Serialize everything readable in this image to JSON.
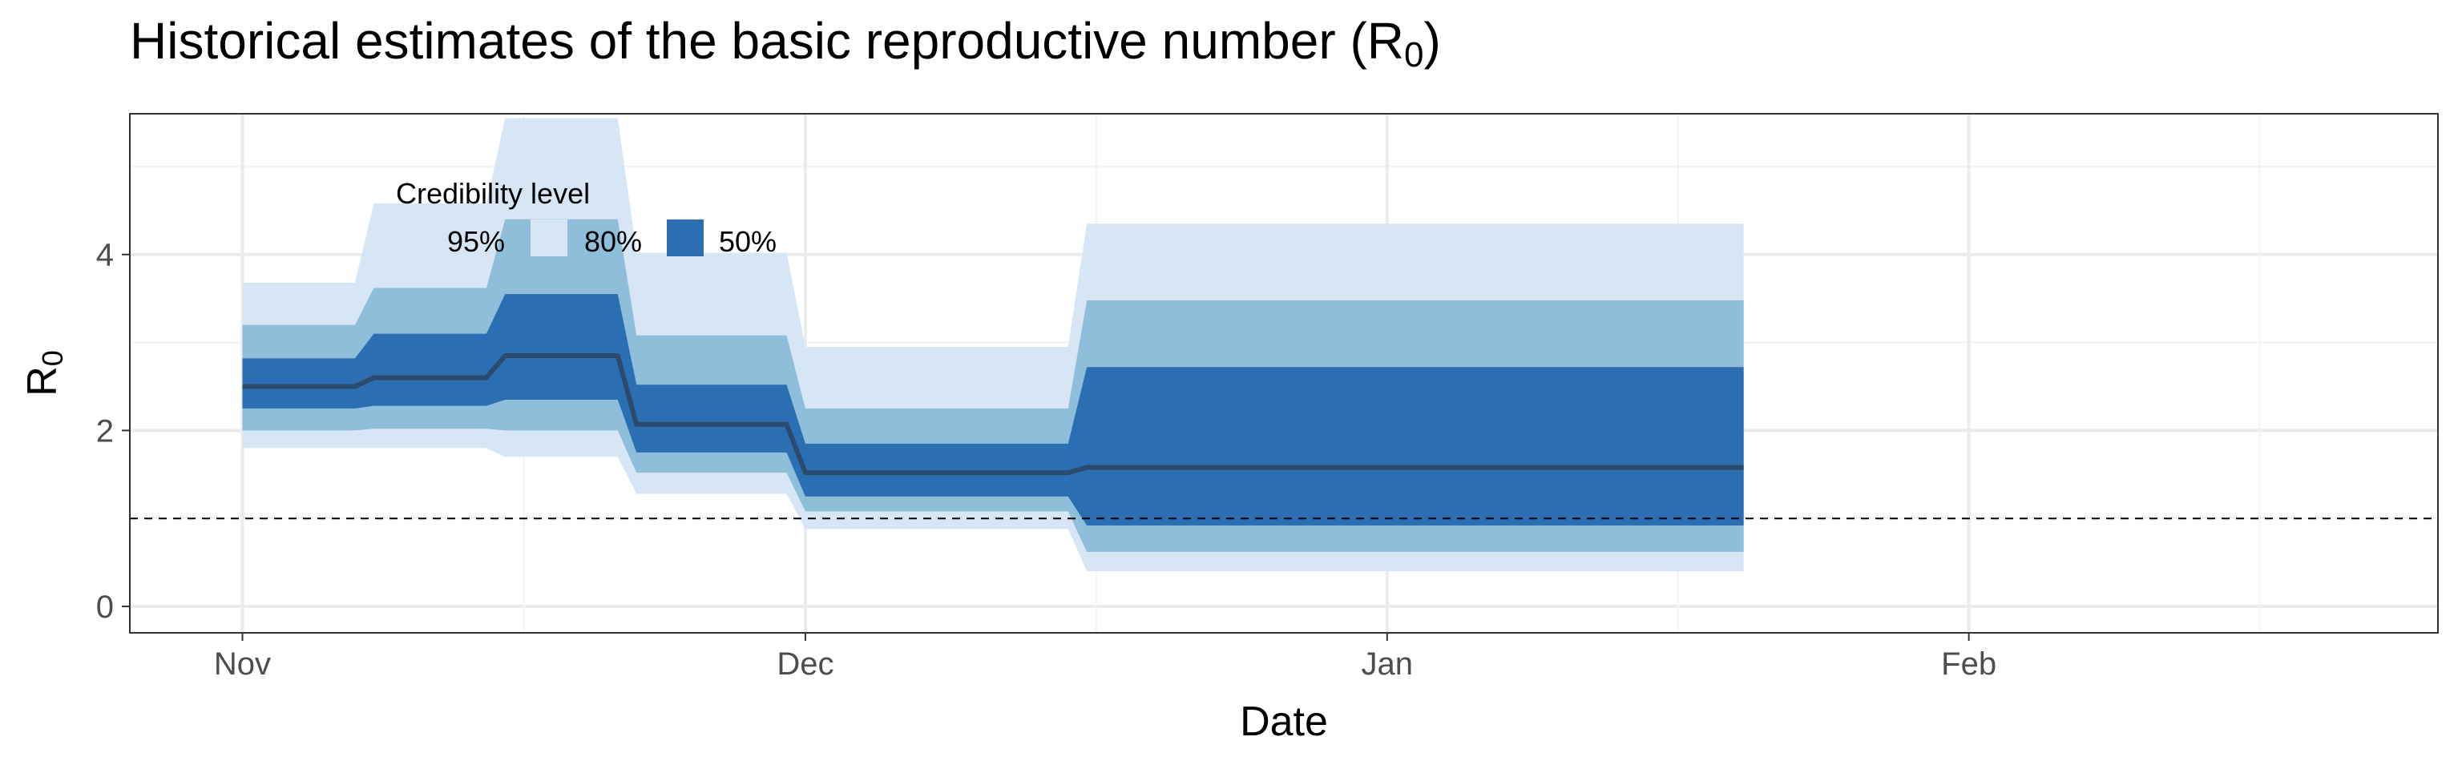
{
  "chart_data": {
    "type": "area",
    "title": "Historical estimates of the basic reproductive number (R",
    "title_subscript": "0",
    "xlabel": "Date",
    "ylabel": "R",
    "ylabel_subscript": "0",
    "x_ticks": [
      "Nov",
      "Dec",
      "Jan",
      "Feb"
    ],
    "x_tick_dates": [
      "2020-11-01",
      "2020-12-01",
      "2021-01-01",
      "2021-02-01"
    ],
    "y_ticks": [
      "0",
      "2",
      "4"
    ],
    "ylim": [
      -0.3,
      5.6
    ],
    "xlim": [
      "2020-10-26",
      "2021-02-26"
    ],
    "grid": true,
    "reference_line": {
      "y": 1,
      "style": "dashed"
    },
    "legend": {
      "title": "Credibility level",
      "placement": "top-left",
      "items": [
        {
          "label": "95%",
          "color": "#d6e6f4"
        },
        {
          "label": "80%",
          "color": "#8fbedb"
        },
        {
          "label": "50%",
          "color": "#2b6fb2"
        }
      ]
    },
    "series": [
      {
        "name": "Median",
        "color": "#2c4a6b",
        "points": [
          {
            "date": "2020-11-01",
            "median": 2.5,
            "lo50": 2.25,
            "hi50": 2.82,
            "lo80": 2.0,
            "hi80": 3.2,
            "lo95": 1.8,
            "hi95": 3.68
          },
          {
            "date": "2020-11-07",
            "median": 2.5,
            "lo50": 2.25,
            "hi50": 2.82,
            "lo80": 2.0,
            "hi80": 3.2,
            "lo95": 1.8,
            "hi95": 3.68
          },
          {
            "date": "2020-11-08",
            "median": 2.6,
            "lo50": 2.28,
            "hi50": 3.1,
            "lo80": 2.02,
            "hi80": 3.62,
            "lo95": 1.8,
            "hi95": 4.58
          },
          {
            "date": "2020-11-14",
            "median": 2.6,
            "lo50": 2.28,
            "hi50": 3.1,
            "lo80": 2.02,
            "hi80": 3.62,
            "lo95": 1.8,
            "hi95": 4.58
          },
          {
            "date": "2020-11-15",
            "median": 2.85,
            "lo50": 2.35,
            "hi50": 3.55,
            "lo80": 2.0,
            "hi80": 4.4,
            "lo95": 1.7,
            "hi95": 5.55
          },
          {
            "date": "2020-11-21",
            "median": 2.85,
            "lo50": 2.35,
            "hi50": 3.55,
            "lo80": 2.0,
            "hi80": 4.4,
            "lo95": 1.7,
            "hi95": 5.55
          },
          {
            "date": "2020-11-22",
            "median": 2.07,
            "lo50": 1.75,
            "hi50": 2.52,
            "lo80": 1.52,
            "hi80": 3.08,
            "lo95": 1.28,
            "hi95": 4.02
          },
          {
            "date": "2020-11-30",
            "median": 2.07,
            "lo50": 1.75,
            "hi50": 2.52,
            "lo80": 1.52,
            "hi80": 3.08,
            "lo95": 1.28,
            "hi95": 4.02
          },
          {
            "date": "2020-12-01",
            "median": 1.52,
            "lo50": 1.25,
            "hi50": 1.85,
            "lo80": 1.08,
            "hi80": 2.25,
            "lo95": 0.88,
            "hi95": 2.95
          },
          {
            "date": "2020-12-15",
            "median": 1.52,
            "lo50": 1.25,
            "hi50": 1.85,
            "lo80": 1.08,
            "hi80": 2.25,
            "lo95": 0.88,
            "hi95": 2.95
          },
          {
            "date": "2020-12-16",
            "median": 1.58,
            "lo50": 0.92,
            "hi50": 2.72,
            "lo80": 0.62,
            "hi80": 3.48,
            "lo95": 0.4,
            "hi95": 4.35
          },
          {
            "date": "2021-01-20",
            "median": 1.58,
            "lo50": 0.92,
            "hi50": 2.72,
            "lo80": 0.62,
            "hi80": 3.48,
            "lo95": 0.4,
            "hi95": 4.35
          }
        ]
      }
    ]
  }
}
